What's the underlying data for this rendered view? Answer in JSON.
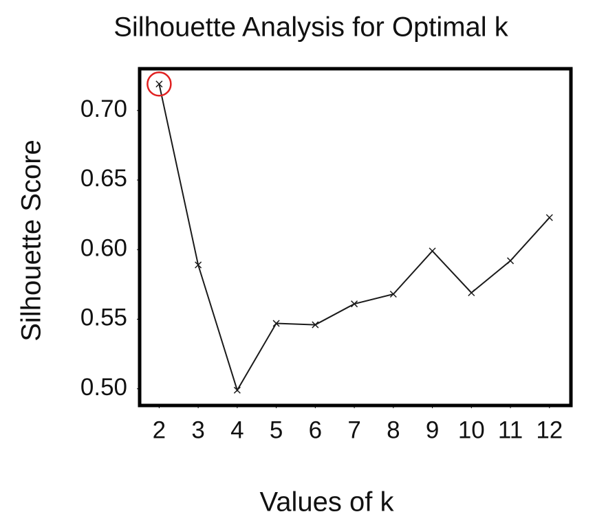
{
  "chart_data": {
    "type": "line",
    "title": "Silhouette Analysis for Optimal k",
    "x_label": "Values of k",
    "y_label": "Silhouette Score",
    "x": [
      2,
      3,
      4,
      5,
      6,
      7,
      8,
      9,
      10,
      11,
      12
    ],
    "series": [
      {
        "name": "Silhouette Score",
        "color": "#1a1a1a",
        "marker": "x",
        "values": [
          0.719,
          0.589,
          0.499,
          0.547,
          0.546,
          0.561,
          0.568,
          0.599,
          0.569,
          0.592,
          0.623
        ]
      }
    ],
    "xlim": [
      1.5,
      12.55
    ],
    "ylim": [
      0.488,
      0.73
    ],
    "xticks": [
      2,
      3,
      4,
      5,
      6,
      7,
      8,
      9,
      10,
      11,
      12
    ],
    "yticks": [
      {
        "value": 0.5,
        "label": "0.50"
      },
      {
        "value": 0.55,
        "label": "0.55"
      },
      {
        "value": 0.6,
        "label": "0.60"
      },
      {
        "value": 0.65,
        "label": "0.65"
      },
      {
        "value": 0.7,
        "label": "0.70"
      }
    ],
    "grid": false,
    "highlight_x": 2,
    "highlight_color": "#e02020"
  }
}
